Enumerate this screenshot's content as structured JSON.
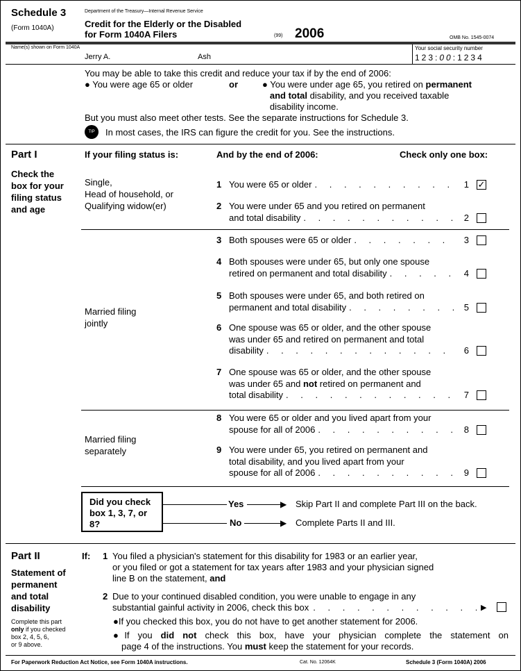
{
  "header": {
    "schedule": "Schedule 3",
    "form": "(Form 1040A)",
    "dept": "Department of the Treasury—Internal Revenue Service",
    "title1": "Credit for the Elderly or the Disabled",
    "title2": "for Form 1040A Filers",
    "seq": "(99)",
    "year": "2006",
    "omb": "OMB No. 1545-0074"
  },
  "name_row": {
    "name_label": "Name(s) shown on Form 1040A",
    "first_name": "Jerry A.",
    "last_name": "Ash",
    "ssn_label": "Your social security number",
    "ssn1": "123",
    "ssn2": "00",
    "ssn3": "1234"
  },
  "intro": {
    "line1": "You may be able to take this credit and reduce your tax if by the end of 2006:",
    "opt1": "● You were age 65 or older",
    "or": "or",
    "opt2a": "● You were under age 65, you retired on",
    "opt2b": "permanent",
    "opt2c": "and total",
    "opt2d": "disability, and you received taxable",
    "opt2e": "disability income.",
    "line3": "But you must also meet other tests. See the separate instructions for Schedule 3.",
    "tip_icon": "TIP",
    "tip": "In most cases, the IRS can figure the credit for you. See the instructions."
  },
  "part1": {
    "title": "Part I",
    "side": [
      "Check the",
      "box for your",
      "filing status",
      "and age"
    ],
    "col1": "If your filing status is:",
    "col2": "And by the end of 2006:",
    "col3": "Check only one box:",
    "status_single": [
      "Single,",
      "Head of household, or",
      "Qualifying widow(er)"
    ],
    "status_joint": [
      "Married filing",
      "jointly"
    ],
    "status_separate": [
      "Married filing",
      "separately"
    ],
    "items": [
      {
        "n": "1",
        "lines": [
          "You were 65 or older"
        ],
        "checked": true
      },
      {
        "n": "2",
        "lines": [
          "You were under 65 and you retired on permanent",
          "and total disability"
        ],
        "checked": false
      },
      {
        "n": "3",
        "lines": [
          "Both spouses were 65 or older"
        ],
        "checked": false
      },
      {
        "n": "4",
        "lines": [
          "Both spouses were under 65, but only one spouse",
          "retired on permanent and total disability"
        ],
        "checked": false
      },
      {
        "n": "5",
        "lines": [
          "Both spouses were under 65, and both retired on",
          "permanent and total disability"
        ],
        "checked": false
      },
      {
        "n": "6",
        "lines": [
          "One spouse was 65 or older, and the other spouse",
          "was under 65 and retired on permanent and total",
          "disability"
        ],
        "checked": false
      },
      {
        "n": "7",
        "lines": [
          "One spouse was 65 or older, and the other spouse",
          [
            {
              "t": "was under 65 and "
            },
            {
              "t": "not",
              "b": true
            },
            {
              "t": " retired on permanent and"
            }
          ],
          "total disability"
        ],
        "checked": false
      },
      {
        "n": "8",
        "lines": [
          "You were 65 or older and you lived apart from your",
          "spouse for all of 2006"
        ],
        "checked": false
      },
      {
        "n": "9",
        "lines": [
          "You were under 65, you retired on permanent and",
          "total disability, and you lived apart from your",
          "spouse for all of 2006"
        ],
        "checked": false
      }
    ],
    "check_mark": "✓",
    "question": [
      "Did you check",
      "box 1, 3, 7, or",
      "8?"
    ],
    "yes": "Yes",
    "yes_text": "Skip Part II and complete Part III on the back.",
    "no": "No",
    "no_text": "Complete Parts II and III."
  },
  "part2": {
    "title": "Part II",
    "side": [
      "Statement of",
      "permanent",
      "and total",
      "disability"
    ],
    "note1": "Complete this part",
    "note2a": "only",
    "note2b": " if you checked",
    "note3": "box 2, 4, 5, 6,",
    "note4": "or 9 above.",
    "if": "If:",
    "i1n": "1",
    "i1a": "You filed a physician's statement for this disability for 1983 or an earlier year,",
    "i1b": "or you filed or got a statement for tax years after 1983 and your physician signed",
    "i1c": "line B on the statement,",
    "i1d": "and",
    "i2n": "2",
    "i2a": "Due to your continued disabled condition, you were unable to engage in any",
    "i2b": "substantial gainful activity in 2006, check this box",
    "arrow": "▶",
    "b1": "●If you checked this box, you do not have to get another statement for 2006.",
    "b2a": "●If you",
    "b2b": "did not",
    "b2c": "check this box, have your physician complete the statement on",
    "b2d": "page 4 of the instructions. You",
    "b2e": "must",
    "b2f": "keep the statement for your records."
  },
  "footer": {
    "left": "For Paperwork Reduction Act Notice, see Form 1040A instructions.",
    "cat": "Cat. No. 12064K",
    "right": "Schedule 3 (Form 1040A) 2006"
  }
}
